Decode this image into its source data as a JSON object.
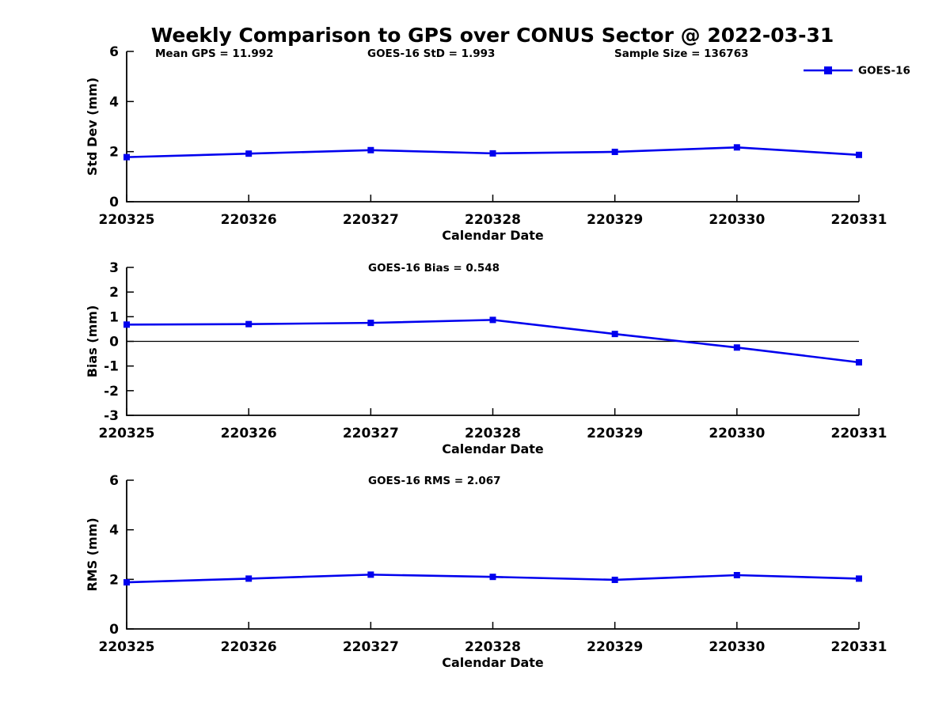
{
  "figure": {
    "title": "Weekly Comparison to GPS over CONUS Sector @ 2022-03-31",
    "background_color": "#ffffff",
    "text_color": "#000000",
    "line_color": "#0000ee",
    "axis_color": "#000000",
    "legend": {
      "label": "GOES-16",
      "position": "top-right"
    }
  },
  "chart_data": [
    {
      "type": "line",
      "name": "stddev",
      "annotations": [
        "Mean GPS = 11.992",
        "GOES-16 StD = 1.993",
        "Sample Size = 136763"
      ],
      "categories": [
        "220325",
        "220326",
        "220327",
        "220328",
        "220329",
        "220330",
        "220331"
      ],
      "series": [
        {
          "name": "GOES-16",
          "values": [
            1.78,
            1.92,
            2.06,
            1.93,
            1.99,
            2.17,
            1.87
          ]
        }
      ],
      "xlabel": "Calendar Date",
      "ylabel": "Std Dev (mm)",
      "ylim": [
        0,
        6
      ],
      "yticks": [
        0,
        2,
        4,
        6
      ],
      "zero_line": false,
      "grid": false,
      "legend_position": "top-right-outside",
      "marker": "square"
    },
    {
      "type": "line",
      "name": "bias",
      "annotations": [
        "GOES-16 Bias  = 0.548"
      ],
      "categories": [
        "220325",
        "220326",
        "220327",
        "220328",
        "220329",
        "220330",
        "220331"
      ],
      "series": [
        {
          "name": "GOES-16",
          "values": [
            0.68,
            0.7,
            0.75,
            0.87,
            0.3,
            -0.25,
            -0.85
          ]
        }
      ],
      "xlabel": "Calendar Date",
      "ylabel": "Bias (mm)",
      "ylim": [
        -3,
        3
      ],
      "yticks": [
        -3,
        -2,
        -1,
        0,
        1,
        2,
        3
      ],
      "zero_line": true,
      "grid": false,
      "legend_position": "none",
      "marker": "square"
    },
    {
      "type": "line",
      "name": "rms",
      "annotations": [
        "GOES-16 RMS = 2.067"
      ],
      "categories": [
        "220325",
        "220326",
        "220327",
        "220328",
        "220329",
        "220330",
        "220331"
      ],
      "series": [
        {
          "name": "GOES-16",
          "values": [
            1.88,
            2.03,
            2.19,
            2.1,
            1.98,
            2.17,
            2.03
          ]
        }
      ],
      "xlabel": "Calendar Date",
      "ylabel": "RMS (mm)",
      "ylim": [
        0,
        6
      ],
      "yticks": [
        0,
        2,
        4,
        6
      ],
      "zero_line": false,
      "grid": false,
      "legend_position": "none",
      "marker": "square"
    }
  ]
}
